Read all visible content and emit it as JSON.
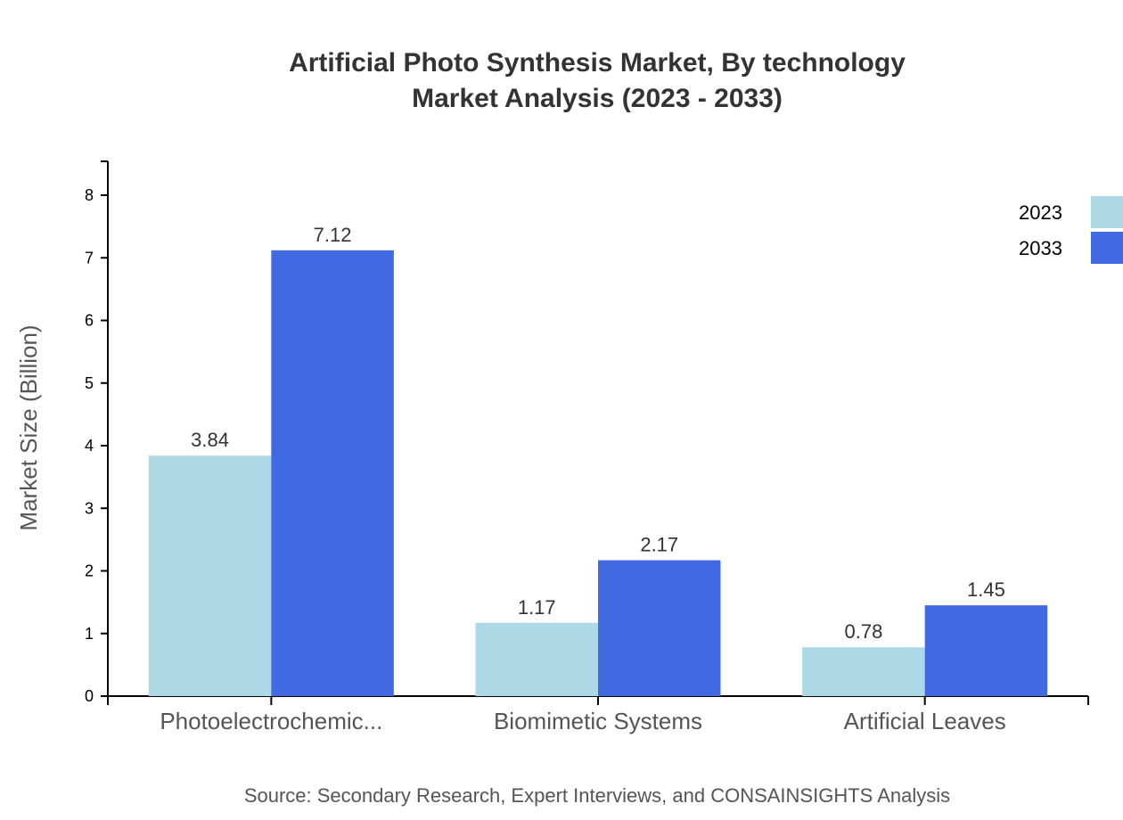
{
  "chart_data": {
    "type": "bar",
    "title": "Artificial Photo Synthesis Market, By technology",
    "subtitle": "Market Analysis (2023 - 2033)",
    "xlabel": "",
    "ylabel": "Market Size (Billion)",
    "ylim": [
      0,
      8.55
    ],
    "yticks": [
      0,
      1,
      2,
      3,
      4,
      5,
      6,
      7,
      8
    ],
    "categories": [
      "Photoelectrochemic...",
      "Biomimetic Systems",
      "Artificial Leaves"
    ],
    "series": [
      {
        "name": "2023",
        "color": "#add8e6",
        "values": [
          3.84,
          1.17,
          0.78
        ]
      },
      {
        "name": "2033",
        "color": "#4169e1",
        "values": [
          7.12,
          2.17,
          1.45
        ]
      }
    ],
    "grid": false,
    "legend": "top-right",
    "source": "Source: Secondary Research, Expert Interviews, and CONSAINSIGHTS Analysis"
  }
}
